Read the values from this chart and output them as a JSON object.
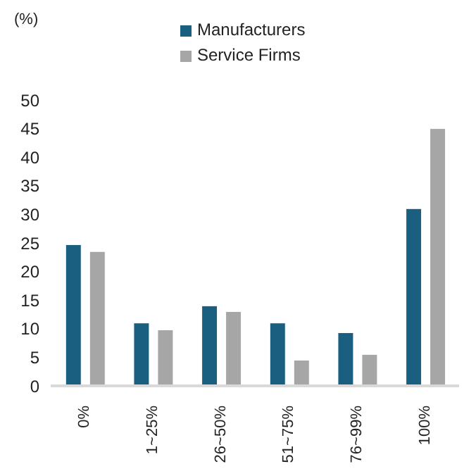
{
  "chart_data": {
    "type": "bar",
    "ylabel": "(%)",
    "categories": [
      "0%",
      "1~25%",
      "26~50%",
      "51~75%",
      "76~99%",
      "100%"
    ],
    "series": [
      {
        "name": "Manufacturers",
        "color": "#1a5e80",
        "values": [
          24.7,
          11,
          14,
          11,
          9.3,
          31
        ]
      },
      {
        "name": "Service Firms",
        "color": "#a6a6a6",
        "values": [
          23.5,
          9.8,
          13,
          4.5,
          5.5,
          45
        ]
      }
    ],
    "ylim": [
      0,
      50
    ],
    "yticks": [
      0,
      5,
      10,
      15,
      20,
      25,
      30,
      35,
      40,
      45,
      50
    ],
    "grid": false,
    "legend": "top"
  }
}
